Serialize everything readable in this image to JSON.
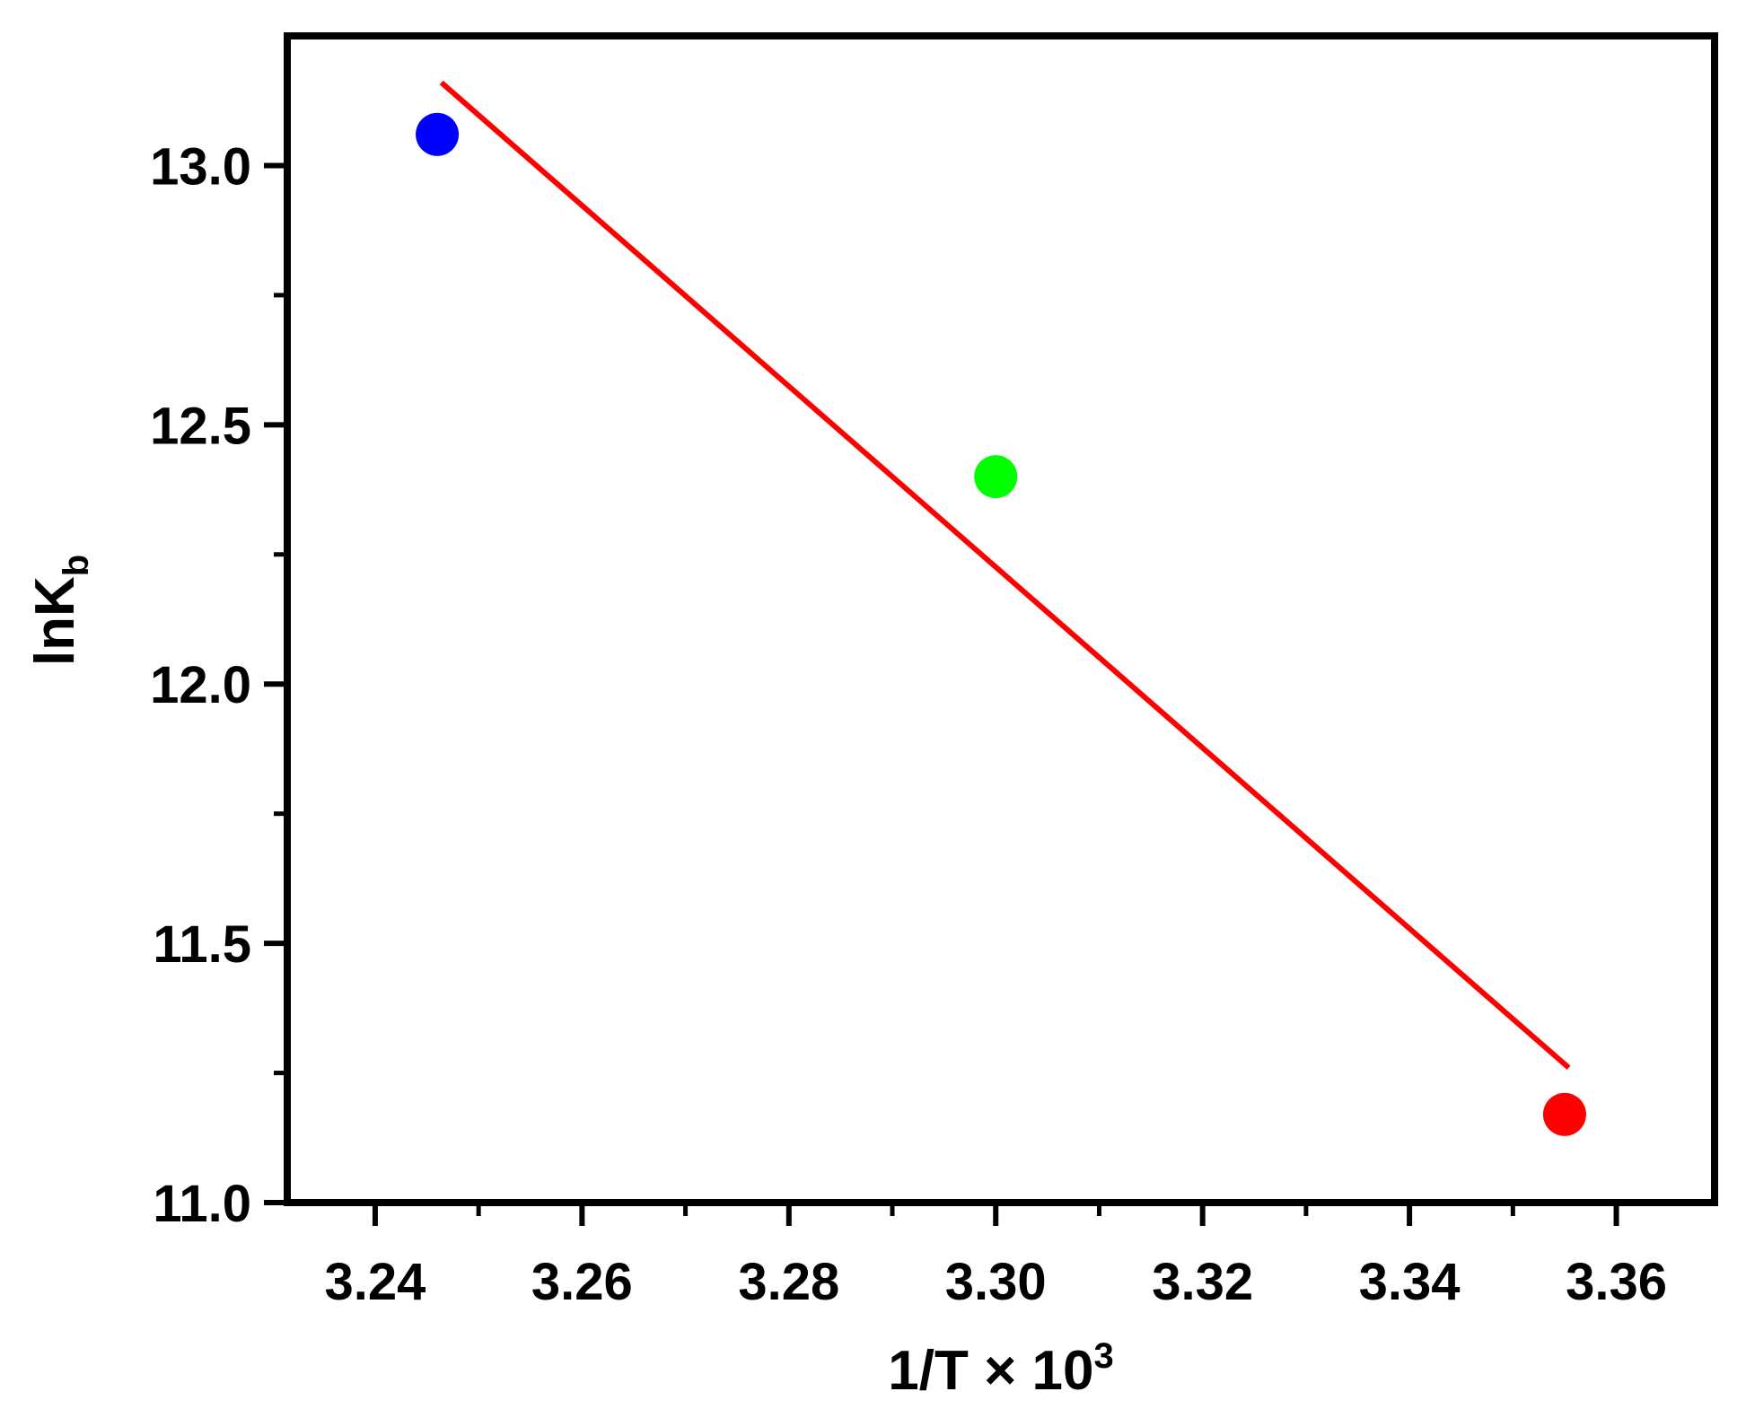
{
  "chart_data": {
    "type": "scatter",
    "title": "",
    "xlabel": "1/T × 10",
    "xlabel_superscript": "3",
    "ylabel": "lnK",
    "ylabel_subscript": "b",
    "xlim": [
      3.2315,
      3.3695
    ],
    "ylim": [
      11.0,
      13.25
    ],
    "x_ticks": [
      {
        "value": 3.24,
        "label": "3.24"
      },
      {
        "value": 3.26,
        "label": "3.26"
      },
      {
        "value": 3.28,
        "label": "3.28"
      },
      {
        "value": 3.3,
        "label": "3.30"
      },
      {
        "value": 3.32,
        "label": "3.32"
      },
      {
        "value": 3.34,
        "label": "3.34"
      },
      {
        "value": 3.36,
        "label": "3.36"
      }
    ],
    "x_minor_ticks": [
      3.25,
      3.27,
      3.29,
      3.31,
      3.33,
      3.35
    ],
    "y_ticks": [
      {
        "value": 11.0,
        "label": "11.0"
      },
      {
        "value": 11.5,
        "label": "11.5"
      },
      {
        "value": 12.0,
        "label": "12.0"
      },
      {
        "value": 12.5,
        "label": "12.5"
      },
      {
        "value": 13.0,
        "label": "13.0"
      }
    ],
    "y_minor_ticks": [
      11.25,
      11.75,
      12.25,
      12.75
    ],
    "points": [
      {
        "x": 3.246,
        "y": 13.06,
        "color": "#0000ff"
      },
      {
        "x": 3.3,
        "y": 12.4,
        "color": "#00ff00"
      },
      {
        "x": 3.355,
        "y": 11.17,
        "color": "#ff0000"
      }
    ],
    "fit_line": {
      "x": [
        3.2464,
        3.3554
      ],
      "y": [
        13.16,
        11.26
      ],
      "color": "#ff0000"
    },
    "grid": false,
    "legend": "none"
  }
}
